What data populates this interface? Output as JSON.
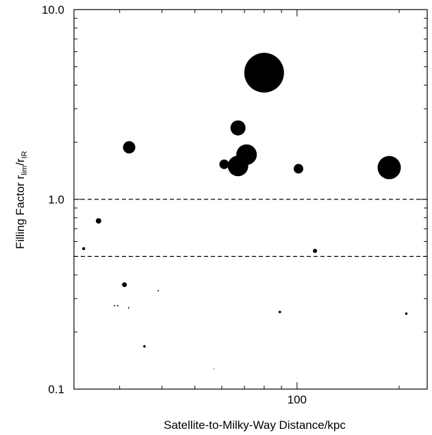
{
  "chart_data": {
    "type": "scatter",
    "xlabel": "Satellite-to-Milky-Way Distance/kpc",
    "ylabel": {
      "prefix": "Filling Factor r",
      "sub1": "lim",
      "mid": "/r",
      "sub2": "IR"
    },
    "x_scale": "log",
    "y_scale": "log",
    "xlim": [
      22,
      242
    ],
    "ylim": [
      0.1,
      10.0
    ],
    "x_tick_labels": [
      {
        "value": 100,
        "label": "100"
      }
    ],
    "y_tick_labels": [
      {
        "value": 0.1,
        "label": "0.1"
      },
      {
        "value": 1.0,
        "label": "1.0"
      },
      {
        "value": 10.0,
        "label": "10.0"
      }
    ],
    "reference_lines_y": [
      1.0,
      0.5
    ],
    "point_color": "#000000",
    "points": [
      {
        "x": 80,
        "y": 4.65,
        "size": 29
      },
      {
        "x": 67,
        "y": 2.38,
        "size": 11
      },
      {
        "x": 32,
        "y": 1.88,
        "size": 9
      },
      {
        "x": 71,
        "y": 1.72,
        "size": 15
      },
      {
        "x": 61,
        "y": 1.53,
        "size": 7
      },
      {
        "x": 67,
        "y": 1.5,
        "size": 15
      },
      {
        "x": 101,
        "y": 1.45,
        "size": 7
      },
      {
        "x": 187,
        "y": 1.47,
        "size": 17
      },
      {
        "x": 26,
        "y": 0.77,
        "size": 4
      },
      {
        "x": 23.5,
        "y": 0.55,
        "size": 2.2
      },
      {
        "x": 113,
        "y": 0.535,
        "size": 3
      },
      {
        "x": 31,
        "y": 0.355,
        "size": 3.5
      },
      {
        "x": 39,
        "y": 0.33,
        "size": 1
      },
      {
        "x": 29,
        "y": 0.275,
        "size": 1
      },
      {
        "x": 29.6,
        "y": 0.275,
        "size": 1
      },
      {
        "x": 31.9,
        "y": 0.268,
        "size": 1
      },
      {
        "x": 89,
        "y": 0.255,
        "size": 1.8
      },
      {
        "x": 210,
        "y": 0.25,
        "size": 1.8
      },
      {
        "x": 35.5,
        "y": 0.168,
        "size": 1.8
      },
      {
        "x": 57,
        "y": 0.128,
        "size": 0.6
      }
    ]
  }
}
